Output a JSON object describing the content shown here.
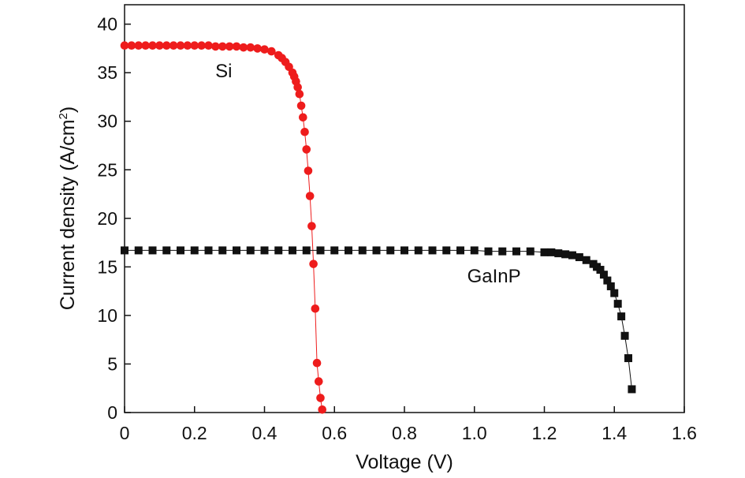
{
  "chart_data": {
    "type": "scatter",
    "xlabel": "Voltage (V)",
    "ylabel": "Current density (A/cm",
    "ylabel_sup": "2",
    "ylabel_close": ")",
    "xlim": [
      0,
      1.6
    ],
    "ylim": [
      0,
      42
    ],
    "xticks": [
      0,
      0.2,
      0.4,
      0.6,
      0.8,
      1.0,
      1.2,
      1.4,
      1.6
    ],
    "xtick_labels": [
      "0",
      "0.2",
      "0.4",
      "0.6",
      "0.8",
      "1.0",
      "1.2",
      "1.4",
      "1.6"
    ],
    "yticks": [
      0,
      5,
      10,
      15,
      20,
      25,
      30,
      35,
      40
    ],
    "ytick_labels": [
      "0",
      "5",
      "10",
      "15",
      "20",
      "25",
      "30",
      "35",
      "40"
    ],
    "grid": false,
    "legend": "none",
    "series": [
      {
        "name": "Si",
        "color": "#ee1c1c",
        "marker": "circle",
        "x": [
          0,
          0.02,
          0.04,
          0.06,
          0.08,
          0.1,
          0.12,
          0.14,
          0.16,
          0.18,
          0.2,
          0.22,
          0.24,
          0.26,
          0.28,
          0.3,
          0.32,
          0.34,
          0.36,
          0.38,
          0.4,
          0.42,
          0.44,
          0.45,
          0.46,
          0.47,
          0.48,
          0.485,
          0.49,
          0.495,
          0.5,
          0.505,
          0.51,
          0.515,
          0.52,
          0.525,
          0.53,
          0.535,
          0.54,
          0.545,
          0.55,
          0.555,
          0.56,
          0.565
        ],
        "y": [
          37.8,
          37.8,
          37.8,
          37.8,
          37.8,
          37.8,
          37.8,
          37.8,
          37.8,
          37.8,
          37.8,
          37.8,
          37.8,
          37.7,
          37.7,
          37.7,
          37.7,
          37.6,
          37.6,
          37.5,
          37.4,
          37.2,
          36.8,
          36.5,
          36.1,
          35.6,
          35.0,
          34.6,
          34.1,
          33.5,
          32.8,
          31.6,
          30.4,
          28.9,
          27.1,
          24.9,
          22.3,
          19.2,
          15.3,
          10.7,
          5.1,
          3.2,
          1.5,
          0.3
        ]
      },
      {
        "name": "GaInP",
        "color": "#111111",
        "marker": "square",
        "x": [
          0,
          0.04,
          0.08,
          0.12,
          0.16,
          0.2,
          0.24,
          0.28,
          0.32,
          0.36,
          0.4,
          0.44,
          0.48,
          0.52,
          0.56,
          0.6,
          0.64,
          0.68,
          0.72,
          0.76,
          0.8,
          0.84,
          0.88,
          0.92,
          0.96,
          1.0,
          1.04,
          1.08,
          1.12,
          1.16,
          1.2,
          1.22,
          1.24,
          1.26,
          1.28,
          1.3,
          1.32,
          1.34,
          1.35,
          1.36,
          1.37,
          1.38,
          1.39,
          1.4,
          1.41,
          1.42,
          1.43,
          1.44,
          1.45
        ],
        "y": [
          16.7,
          16.7,
          16.7,
          16.7,
          16.7,
          16.7,
          16.7,
          16.7,
          16.7,
          16.7,
          16.7,
          16.7,
          16.7,
          16.7,
          16.7,
          16.7,
          16.7,
          16.7,
          16.7,
          16.7,
          16.7,
          16.7,
          16.7,
          16.7,
          16.7,
          16.7,
          16.6,
          16.6,
          16.6,
          16.6,
          16.5,
          16.5,
          16.4,
          16.3,
          16.2,
          16.0,
          15.7,
          15.3,
          15.0,
          14.7,
          14.2,
          13.6,
          13.0,
          12.3,
          11.2,
          9.9,
          7.9,
          5.6,
          2.4
        ]
      }
    ],
    "annotations": [
      {
        "text": "Si",
        "x": 0.3,
        "y": 35.0
      },
      {
        "text": "GaInP",
        "x": 1.02,
        "y": 13.9
      }
    ]
  }
}
